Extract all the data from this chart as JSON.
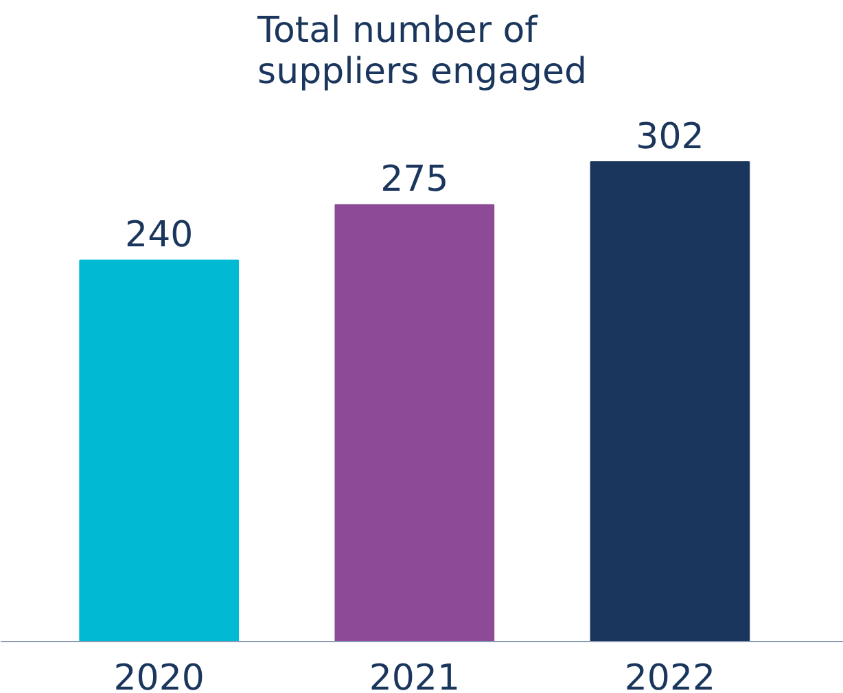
{
  "chart_data": {
    "type": "bar",
    "title": "Total number of\nsuppliers engaged",
    "categories": [
      "2020",
      "2021",
      "2022"
    ],
    "values": [
      240,
      275,
      302
    ],
    "colors": [
      "#00b9d3",
      "#8d4a96",
      "#1b365d"
    ],
    "data_labels": true,
    "tick_labels": "x",
    "grid": false
  }
}
